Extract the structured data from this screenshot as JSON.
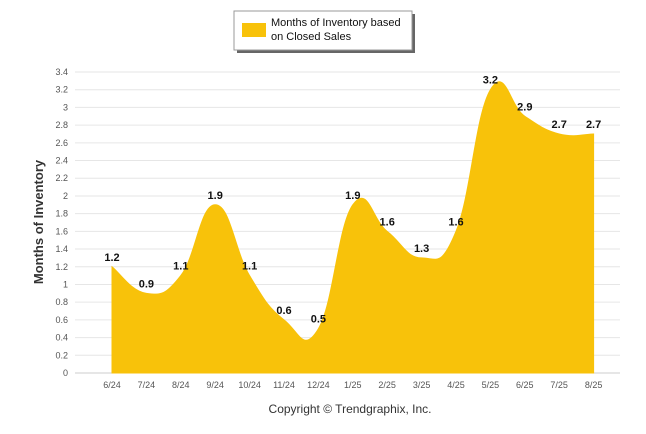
{
  "chart_data": {
    "type": "area",
    "categories": [
      "6/24",
      "7/24",
      "8/24",
      "9/24",
      "10/24",
      "11/24",
      "12/24",
      "1/25",
      "2/25",
      "3/25",
      "4/25",
      "5/25",
      "6/25",
      "7/25",
      "8/25"
    ],
    "series": [
      {
        "name": "Months of Inventory based on Closed Sales",
        "values": [
          1.2,
          0.9,
          1.1,
          1.9,
          1.1,
          0.6,
          0.5,
          1.9,
          1.6,
          1.3,
          1.6,
          3.2,
          2.9,
          2.7,
          2.7
        ],
        "color": "#F8C20A"
      }
    ],
    "data_labels": [
      "1.2",
      "0.9",
      "1.1",
      "1.9",
      "1.1",
      "0.6",
      "0.5",
      "1.9",
      "1.6",
      "1.3",
      "1.6",
      "3.2",
      "2.9",
      "2.7",
      "2.7"
    ],
    "ylabel": "Months of Inventory",
    "xlabel": "",
    "ylim": [
      0,
      3.4
    ],
    "yticks": [
      "0",
      "0.2",
      "0.4",
      "0.6",
      "0.8",
      "1",
      "1.2",
      "1.4",
      "1.6",
      "1.8",
      "2",
      "2.2",
      "2.4",
      "2.6",
      "2.8",
      "3",
      "3.2",
      "3.4"
    ],
    "grid": true,
    "legend_position": "top-center",
    "legend_line1": "Months of Inventory based",
    "legend_line2": "on Closed Sales",
    "footer": "Copyright © Trendgraphix, Inc."
  }
}
